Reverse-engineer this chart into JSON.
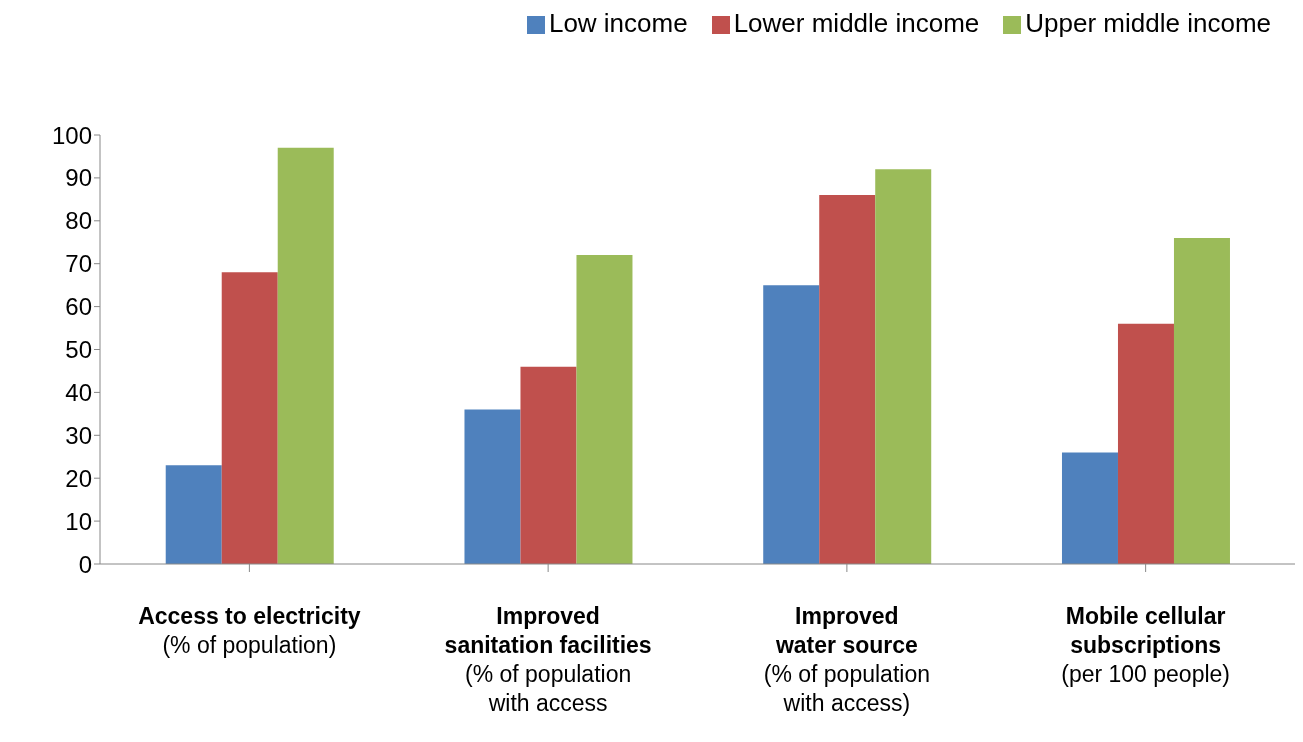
{
  "chart_data": {
    "type": "bar",
    "categories": [
      "Access to electricity\n(% of population)",
      "Improved\nsanitation facilities\n(% of population\nwith access",
      "Improved\nwater source\n(% of population\nwith access)",
      "Mobile cellular\nsubscriptions\n(per 100 people)"
    ],
    "series": [
      {
        "name": "Low income",
        "color": "#4f81bd",
        "values": [
          23,
          36,
          65,
          26
        ]
      },
      {
        "name": "Lower middle income",
        "color": "#c0504d",
        "values": [
          68,
          46,
          86,
          56
        ]
      },
      {
        "name": "Upper middle income",
        "color": "#9bbb59",
        "values": [
          97,
          72,
          92,
          76
        ]
      }
    ],
    "ylim": [
      0,
      100
    ],
    "yticks": [
      0,
      10,
      20,
      30,
      40,
      50,
      60,
      70,
      80,
      90,
      100
    ],
    "grid": false,
    "legend": "top right"
  }
}
